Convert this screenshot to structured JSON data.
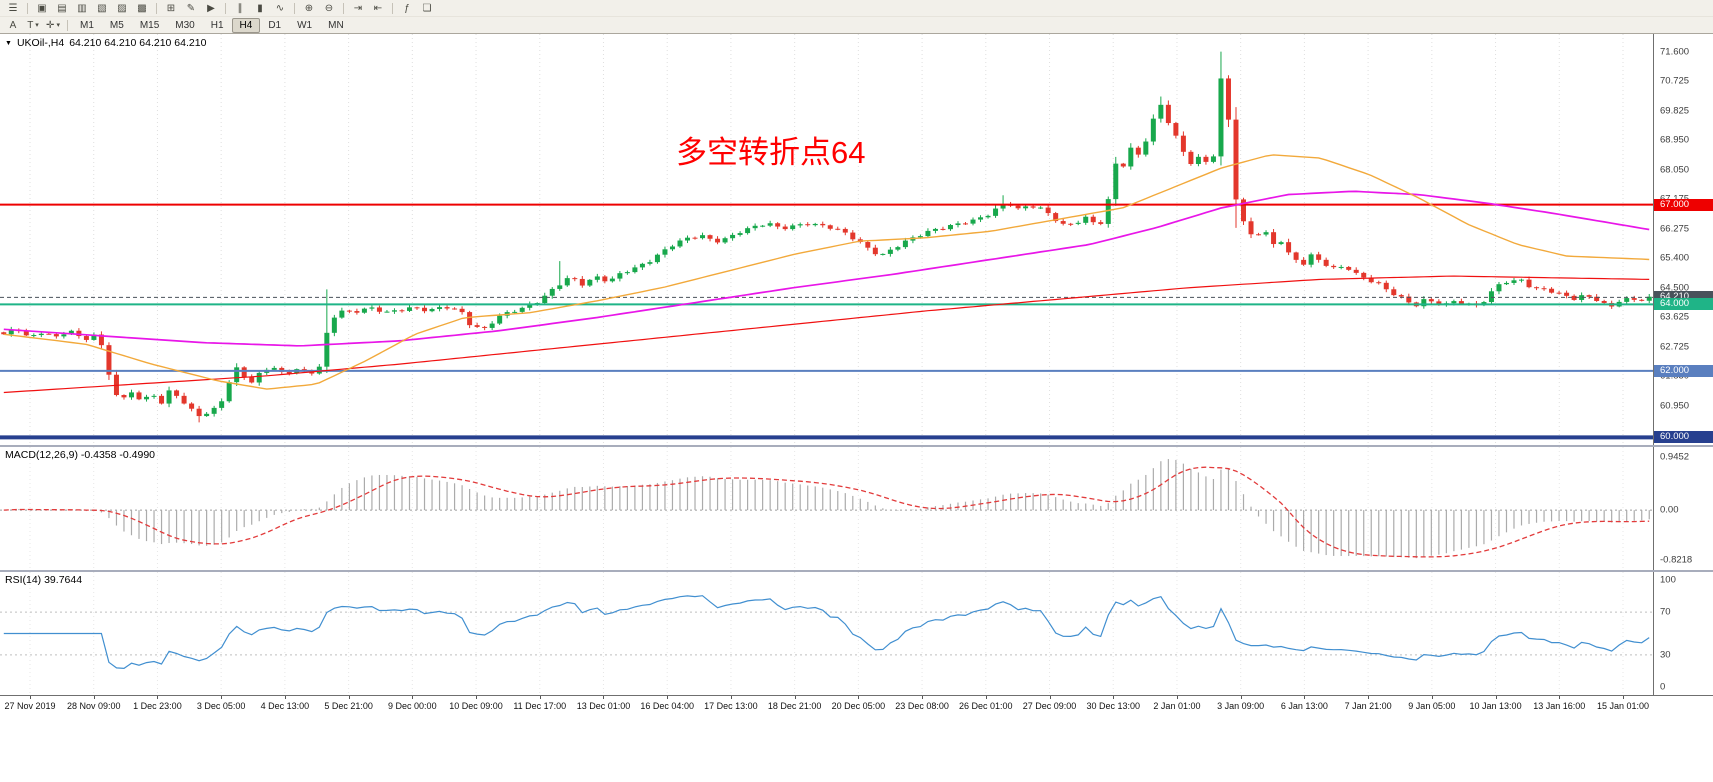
{
  "toolbar": {
    "row1_icons": [
      {
        "name": "menu-icon",
        "glyph": "☰",
        "sep_after": true
      },
      {
        "name": "new-chart-icon",
        "glyph": "▣"
      },
      {
        "name": "profiles-icon",
        "glyph": "▤"
      },
      {
        "name": "market-watch-icon",
        "glyph": "▥"
      },
      {
        "name": "data-window-icon",
        "glyph": "▧"
      },
      {
        "name": "navigator-icon",
        "glyph": "▨"
      },
      {
        "name": "terminal-icon",
        "glyph": "▩",
        "sep_after": true
      },
      {
        "name": "new-order-icon",
        "glyph": "⊞"
      },
      {
        "name": "metaeditor-icon",
        "glyph": "✎"
      },
      {
        "name": "autotrading-icon",
        "glyph": "▶",
        "sep_after": true
      },
      {
        "name": "bar-chart-icon",
        "glyph": "∥"
      },
      {
        "name": "candlestick-chart-icon",
        "glyph": "▮"
      },
      {
        "name": "line-chart-icon",
        "glyph": "∿",
        "sep_after": true
      },
      {
        "name": "zoom-in-icon",
        "glyph": "⊕"
      },
      {
        "name": "zoom-out-icon",
        "glyph": "⊖",
        "sep_after": true
      },
      {
        "name": "auto-scroll-icon",
        "glyph": "⇥"
      },
      {
        "name": "chart-shift-icon",
        "glyph": "⇤",
        "sep_after": true
      },
      {
        "name": "indicators-icon",
        "glyph": "ƒ"
      },
      {
        "name": "templates-icon",
        "glyph": "❏"
      }
    ],
    "row2_tools": [
      {
        "name": "cursor-tool",
        "glyph": "A"
      },
      {
        "name": "text-tool",
        "glyph": "T",
        "dropdown": true
      },
      {
        "name": "draw-tools-dropdown",
        "glyph": "✛",
        "dropdown": true
      }
    ],
    "timeframes": [
      {
        "label": "M1"
      },
      {
        "label": "M5"
      },
      {
        "label": "M15"
      },
      {
        "label": "M30"
      },
      {
        "label": "H1"
      },
      {
        "label": "H4",
        "active": true
      },
      {
        "label": "D1"
      },
      {
        "label": "W1"
      },
      {
        "label": "MN"
      }
    ]
  },
  "chart": {
    "type": "candlestick",
    "symbol": "UKOil-,H4",
    "ohlc": "64.210 64.210 64.210 64.210",
    "collapse_icon": "▼",
    "annotation": {
      "text": "多空转折点64",
      "color": "#FF0000"
    },
    "y_domain": [
      59.95,
      71.95
    ],
    "price_ticks": [
      "71.600",
      "70.725",
      "69.825",
      "68.950",
      "68.050",
      "67.175",
      "66.275",
      "65.400",
      "64.500",
      "63.625",
      "62.725",
      "61.850",
      "60.950",
      "60.075"
    ],
    "levels": [
      {
        "price": 67.0,
        "label": "67.000",
        "color": "#EE0000",
        "width": 2
      },
      {
        "price": 64.21,
        "label": "64.210",
        "color": "#49525B",
        "width": 1,
        "dash": "4,3"
      },
      {
        "price": 64.0,
        "label": "64.000",
        "color": "#1FB487",
        "width": 2
      },
      {
        "price": 62.0,
        "label": "62.000",
        "color": "#5A7FBF",
        "width": 2
      },
      {
        "price": 60.0,
        "label": "60.000",
        "color": "#27408F",
        "width": 4
      }
    ],
    "time_labels": [
      "27 Nov 2019",
      "28 Nov 09:00",
      "1 Dec 23:00",
      "3 Dec 05:00",
      "4 Dec 13:00",
      "5 Dec 21:00",
      "9 Dec 00:00",
      "10 Dec 09:00",
      "11 Dec 17:00",
      "13 Dec 01:00",
      "16 Dec 04:00",
      "17 Dec 13:00",
      "18 Dec 21:00",
      "20 Dec 05:00",
      "23 Dec 08:00",
      "26 Dec 01:00",
      "27 Dec 09:00",
      "30 Dec 13:00",
      "2 Jan 01:00",
      "3 Jan 09:00",
      "6 Jan 13:00",
      "7 Jan 21:00",
      "9 Jan 05:00",
      "10 Jan 13:00",
      "13 Jan 16:00",
      "15 Jan 01:00"
    ],
    "colors": {
      "up": "#18A84C",
      "down": "#E3372C",
      "grid": "#DFDFDF",
      "macd_hist": "#ABABAB",
      "macd_signal": "#E23B3B",
      "rsi_line": "#418FD0",
      "rsi_levels": "#BFBFBF"
    },
    "moving_averages": [
      {
        "name": "slow-ma",
        "color": "#F01010",
        "width": 1.2,
        "points": [
          [
            0,
            61.35
          ],
          [
            0.08,
            61.6
          ],
          [
            0.16,
            61.85
          ],
          [
            0.24,
            62.2
          ],
          [
            0.32,
            62.6
          ],
          [
            0.4,
            63.0
          ],
          [
            0.48,
            63.4
          ],
          [
            0.56,
            63.8
          ],
          [
            0.64,
            64.15
          ],
          [
            0.72,
            64.5
          ],
          [
            0.8,
            64.75
          ],
          [
            0.88,
            64.85
          ],
          [
            0.94,
            64.8
          ],
          [
            1,
            64.75
          ]
        ]
      },
      {
        "name": "medium-ma",
        "color": "#E816E8",
        "width": 1.7,
        "points": [
          [
            0,
            63.25
          ],
          [
            0.06,
            63.05
          ],
          [
            0.12,
            62.85
          ],
          [
            0.18,
            62.75
          ],
          [
            0.24,
            62.9
          ],
          [
            0.3,
            63.2
          ],
          [
            0.36,
            63.6
          ],
          [
            0.42,
            64.05
          ],
          [
            0.48,
            64.5
          ],
          [
            0.54,
            64.9
          ],
          [
            0.6,
            65.35
          ],
          [
            0.66,
            65.8
          ],
          [
            0.7,
            66.3
          ],
          [
            0.74,
            66.9
          ],
          [
            0.78,
            67.3
          ],
          [
            0.82,
            67.4
          ],
          [
            0.86,
            67.3
          ],
          [
            0.9,
            67.05
          ],
          [
            0.94,
            66.75
          ],
          [
            0.97,
            66.5
          ],
          [
            1,
            66.25
          ]
        ]
      },
      {
        "name": "fast-ma",
        "color": "#F2A93B",
        "width": 1.4,
        "points": [
          [
            0,
            63.1
          ],
          [
            0.05,
            62.8
          ],
          [
            0.09,
            62.2
          ],
          [
            0.13,
            61.7
          ],
          [
            0.16,
            61.45
          ],
          [
            0.19,
            61.6
          ],
          [
            0.22,
            62.3
          ],
          [
            0.25,
            63.1
          ],
          [
            0.28,
            63.6
          ],
          [
            0.32,
            63.75
          ],
          [
            0.36,
            64.1
          ],
          [
            0.4,
            64.5
          ],
          [
            0.44,
            65.0
          ],
          [
            0.48,
            65.5
          ],
          [
            0.52,
            65.9
          ],
          [
            0.56,
            66.0
          ],
          [
            0.6,
            66.2
          ],
          [
            0.64,
            66.55
          ],
          [
            0.68,
            66.9
          ],
          [
            0.71,
            67.5
          ],
          [
            0.74,
            68.1
          ],
          [
            0.77,
            68.5
          ],
          [
            0.8,
            68.4
          ],
          [
            0.83,
            67.9
          ],
          [
            0.86,
            67.2
          ],
          [
            0.89,
            66.4
          ],
          [
            0.92,
            65.8
          ],
          [
            0.95,
            65.45
          ],
          [
            1,
            65.35
          ]
        ]
      }
    ],
    "candles": {
      "count": 220,
      "render": {
        "wobble1": 0.045,
        "wobble2": 0.03,
        "wick": 0.1
      },
      "anchors": [
        [
          0.0,
          63.1
        ],
        [
          0.008,
          63.25
        ],
        [
          0.016,
          62.95
        ],
        [
          0.024,
          63.18
        ],
        [
          0.032,
          63.02
        ],
        [
          0.04,
          63.28
        ],
        [
          0.048,
          62.92
        ],
        [
          0.056,
          63.1
        ],
        [
          0.062,
          62.4
        ],
        [
          0.066,
          61.35
        ],
        [
          0.072,
          61.1
        ],
        [
          0.078,
          61.42
        ],
        [
          0.084,
          61.05
        ],
        [
          0.09,
          61.4
        ],
        [
          0.096,
          61.02
        ],
        [
          0.102,
          61.5
        ],
        [
          0.108,
          61.05
        ],
        [
          0.114,
          60.8
        ],
        [
          0.12,
          60.62
        ],
        [
          0.126,
          60.75
        ],
        [
          0.132,
          61.1
        ],
        [
          0.138,
          61.8
        ],
        [
          0.143,
          62.22
        ],
        [
          0.149,
          61.55
        ],
        [
          0.155,
          61.88
        ],
        [
          0.162,
          62.12
        ],
        [
          0.17,
          61.88
        ],
        [
          0.178,
          62.05
        ],
        [
          0.186,
          61.95
        ],
        [
          0.192,
          62.15
        ],
        [
          0.198,
          63.5
        ],
        [
          0.204,
          63.8
        ],
        [
          0.212,
          63.72
        ],
        [
          0.222,
          63.88
        ],
        [
          0.234,
          63.78
        ],
        [
          0.246,
          63.92
        ],
        [
          0.258,
          63.8
        ],
        [
          0.27,
          63.9
        ],
        [
          0.278,
          63.78
        ],
        [
          0.284,
          63.38
        ],
        [
          0.292,
          63.28
        ],
        [
          0.3,
          63.62
        ],
        [
          0.308,
          63.76
        ],
        [
          0.316,
          63.86
        ],
        [
          0.326,
          64.12
        ],
        [
          0.336,
          64.58
        ],
        [
          0.344,
          64.85
        ],
        [
          0.352,
          64.6
        ],
        [
          0.36,
          64.8
        ],
        [
          0.368,
          64.66
        ],
        [
          0.376,
          64.96
        ],
        [
          0.384,
          65.12
        ],
        [
          0.392,
          65.32
        ],
        [
          0.4,
          65.58
        ],
        [
          0.408,
          65.82
        ],
        [
          0.416,
          65.96
        ],
        [
          0.424,
          66.06
        ],
        [
          0.432,
          65.9
        ],
        [
          0.44,
          66.02
        ],
        [
          0.448,
          66.22
        ],
        [
          0.456,
          66.32
        ],
        [
          0.464,
          66.42
        ],
        [
          0.472,
          66.26
        ],
        [
          0.48,
          66.36
        ],
        [
          0.488,
          66.46
        ],
        [
          0.496,
          66.4
        ],
        [
          0.504,
          66.3
        ],
        [
          0.512,
          66.1
        ],
        [
          0.52,
          65.84
        ],
        [
          0.528,
          65.58
        ],
        [
          0.534,
          65.5
        ],
        [
          0.542,
          65.76
        ],
        [
          0.55,
          65.96
        ],
        [
          0.558,
          66.1
        ],
        [
          0.566,
          66.22
        ],
        [
          0.574,
          66.32
        ],
        [
          0.582,
          66.46
        ],
        [
          0.59,
          66.56
        ],
        [
          0.598,
          66.72
        ],
        [
          0.605,
          66.92
        ],
        [
          0.61,
          67.06
        ],
        [
          0.616,
          66.82
        ],
        [
          0.624,
          66.96
        ],
        [
          0.632,
          66.86
        ],
        [
          0.638,
          66.62
        ],
        [
          0.645,
          66.38
        ],
        [
          0.652,
          66.48
        ],
        [
          0.658,
          66.6
        ],
        [
          0.664,
          66.36
        ],
        [
          0.67,
          66.52
        ],
        [
          0.674,
          68.42
        ],
        [
          0.678,
          67.95
        ],
        [
          0.682,
          68.36
        ],
        [
          0.686,
          68.82
        ],
        [
          0.69,
          68.48
        ],
        [
          0.694,
          68.96
        ],
        [
          0.699,
          69.62
        ],
        [
          0.703,
          70.02
        ],
        [
          0.707,
          69.56
        ],
        [
          0.711,
          69.16
        ],
        [
          0.715,
          68.72
        ],
        [
          0.719,
          68.36
        ],
        [
          0.723,
          68.16
        ],
        [
          0.727,
          68.46
        ],
        [
          0.731,
          68.26
        ],
        [
          0.736,
          68.56
        ],
        [
          0.74,
          70.95
        ],
        [
          0.744,
          69.75
        ],
        [
          0.748,
          67.4
        ],
        [
          0.752,
          66.55
        ],
        [
          0.756,
          66.32
        ],
        [
          0.76,
          65.86
        ],
        [
          0.764,
          66.26
        ],
        [
          0.768,
          66.06
        ],
        [
          0.772,
          65.76
        ],
        [
          0.776,
          65.92
        ],
        [
          0.78,
          65.56
        ],
        [
          0.785,
          65.36
        ],
        [
          0.79,
          65.26
        ],
        [
          0.795,
          65.52
        ],
        [
          0.8,
          65.32
        ],
        [
          0.805,
          65.16
        ],
        [
          0.81,
          65.02
        ],
        [
          0.815,
          65.16
        ],
        [
          0.82,
          64.92
        ],
        [
          0.828,
          64.76
        ],
        [
          0.836,
          64.62
        ],
        [
          0.842,
          64.42
        ],
        [
          0.848,
          64.26
        ],
        [
          0.854,
          64.06
        ],
        [
          0.858,
          63.96
        ],
        [
          0.864,
          64.12
        ],
        [
          0.87,
          64.02
        ],
        [
          0.876,
          63.96
        ],
        [
          0.882,
          64.12
        ],
        [
          0.888,
          64.04
        ],
        [
          0.894,
          63.98
        ],
        [
          0.9,
          64.14
        ],
        [
          0.906,
          64.46
        ],
        [
          0.911,
          64.72
        ],
        [
          0.916,
          64.58
        ],
        [
          0.921,
          64.78
        ],
        [
          0.926,
          64.56
        ],
        [
          0.931,
          64.44
        ],
        [
          0.937,
          64.5
        ],
        [
          0.943,
          64.36
        ],
        [
          0.949,
          64.3
        ],
        [
          0.955,
          64.16
        ],
        [
          0.961,
          64.26
        ],
        [
          0.967,
          64.14
        ],
        [
          0.972,
          63.98
        ],
        [
          0.977,
          63.92
        ],
        [
          0.982,
          64.12
        ],
        [
          0.988,
          64.18
        ],
        [
          0.994,
          64.16
        ],
        [
          1.0,
          64.21
        ]
      ],
      "forced_wicks": [
        {
          "f": 0.74,
          "high": 71.6
        },
        {
          "f": 0.703,
          "high": 70.25
        },
        {
          "f": 0.609,
          "high": 67.28
        },
        {
          "f": 0.336,
          "high": 65.3
        },
        {
          "f": 0.198,
          "high": 64.45
        },
        {
          "f": 0.12,
          "low": 60.45
        },
        {
          "f": 0.748,
          "low": 66.3
        }
      ]
    }
  },
  "macd": {
    "label": "MACD(12,26,9) -0.4358 -0.4990",
    "fast": 12,
    "slow": 26,
    "signal": 9,
    "scale_top": "0.9452",
    "scale_zero": "0.00",
    "scale_bottom": "-0.8218"
  },
  "rsi": {
    "label": "RSI(14) 39.7644",
    "period": 14,
    "level_lines": [
      70,
      30
    ],
    "scale": [
      {
        "v": 100,
        "label": "100"
      },
      {
        "v": 70,
        "label": "70"
      },
      {
        "v": 30,
        "label": "30"
      },
      {
        "v": 0,
        "label": "0"
      }
    ]
  }
}
